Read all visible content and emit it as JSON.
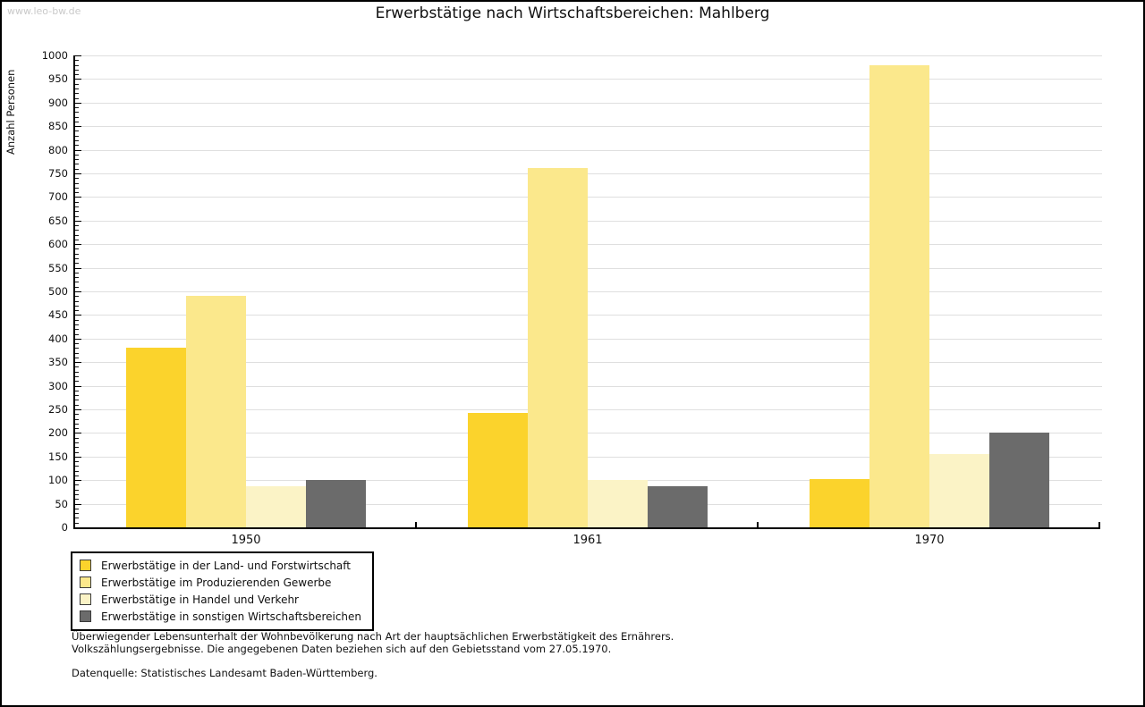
{
  "watermark": "www.leo-bw.de",
  "title": "Erwerbstätige nach Wirtschaftsbereichen: Mahlberg",
  "chart_data": {
    "type": "bar",
    "title": "Erwerbstätige nach Wirtschaftsbereichen: Mahlberg",
    "xlabel": "",
    "ylabel": "Anzahl Personen",
    "categories": [
      "1950",
      "1961",
      "1970"
    ],
    "series": [
      {
        "name": "Erwerbstätige in der Land- und Forstwirtschaft",
        "color": "#FBD32C",
        "values": [
          380,
          242,
          103
        ]
      },
      {
        "name": "Erwerbstätige im Produzierenden Gewerbe",
        "color": "#FBE88C",
        "values": [
          490,
          762,
          980
        ]
      },
      {
        "name": "Erwerbstätige in Handel und Verkehr",
        "color": "#FBF3C6",
        "values": [
          88,
          100,
          156
        ]
      },
      {
        "name": "Erwerbstätige in sonstigen Wirtschaftsbereichen",
        "color": "#6B6B6B",
        "values": [
          100,
          87,
          200
        ]
      }
    ],
    "ylim": [
      0,
      1000
    ],
    "ytick_step": 50,
    "yminor_step": 10,
    "grid": "horizontal",
    "legend_position": "bottom-left"
  },
  "colors": {
    "gridline": "#dfdfdf",
    "axis": "#000000",
    "watermark": "#c9c9c9"
  },
  "footnotes": {
    "line1": "Überwiegender Lebensunterhalt der Wohnbevölkerung nach Art der hauptsächlichen Erwerbstätigkeit des Ernährers.",
    "line2": "Volkszählungsergebnisse. Die angegebenen Daten beziehen sich auf den Gebietsstand vom 27.05.1970.",
    "source": "Datenquelle: Statistisches Landesamt Baden-Württemberg."
  }
}
